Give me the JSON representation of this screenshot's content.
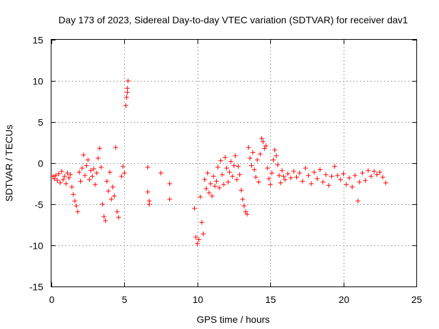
{
  "chart_data": {
    "type": "scatter",
    "title": "Day 173 of 2023, Sidereal Day-to-day VTEC variation (SDTVAR) for receiver dav1",
    "xlabel": "GPS time / hours",
    "ylabel": "SDTVAR / TECUs",
    "xlim": [
      0,
      25
    ],
    "ylim": [
      -15,
      15
    ],
    "xticks": [
      "0",
      "5",
      "10",
      "15",
      "20",
      "25"
    ],
    "yticks": [
      "-15",
      "-10",
      "-5",
      "0",
      "5",
      "10",
      "15"
    ],
    "grid": true,
    "marker": "+",
    "color": "#ff0000",
    "series": [
      {
        "name": "dav1",
        "points": [
          [
            0.1,
            -1.6
          ],
          [
            0.2,
            -1.9
          ],
          [
            0.3,
            -1.5
          ],
          [
            0.4,
            -2.1
          ],
          [
            0.5,
            -1.3
          ],
          [
            0.6,
            -2.4
          ],
          [
            0.7,
            -1.0
          ],
          [
            0.8,
            -2.0
          ],
          [
            0.9,
            -1.6
          ],
          [
            1.0,
            -2.5
          ],
          [
            1.1,
            -1.2
          ],
          [
            1.2,
            -1.8
          ],
          [
            1.3,
            -1.4
          ],
          [
            1.4,
            -2.9
          ],
          [
            1.5,
            -3.8
          ],
          [
            1.6,
            -4.6
          ],
          [
            1.7,
            -5.2
          ],
          [
            1.8,
            -5.9
          ],
          [
            1.9,
            -1.1
          ],
          [
            2.0,
            -2.2
          ],
          [
            2.1,
            -0.6
          ],
          [
            2.2,
            1.0
          ],
          [
            2.3,
            -1.5
          ],
          [
            2.4,
            -0.3
          ],
          [
            2.5,
            0.4
          ],
          [
            2.6,
            -2.0
          ],
          [
            2.7,
            -0.9
          ],
          [
            2.8,
            -1.6
          ],
          [
            2.9,
            -0.7
          ],
          [
            3.0,
            -2.6
          ],
          [
            3.1,
            -1.2
          ],
          [
            3.2,
            0.6
          ],
          [
            3.3,
            1.8
          ],
          [
            3.4,
            -0.5
          ],
          [
            3.5,
            -5.0
          ],
          [
            3.6,
            -6.5
          ],
          [
            3.7,
            -7.0
          ],
          [
            3.8,
            -2.2
          ],
          [
            3.9,
            -3.4
          ],
          [
            4.0,
            -1.1
          ],
          [
            4.1,
            -4.4
          ],
          [
            4.2,
            -2.9
          ],
          [
            4.3,
            -4.0
          ],
          [
            4.4,
            1.9
          ],
          [
            4.5,
            -5.9
          ],
          [
            4.6,
            -6.6
          ],
          [
            4.8,
            -1.6
          ],
          [
            4.9,
            -0.4
          ],
          [
            5.0,
            -1.2
          ],
          [
            5.1,
            7.0
          ],
          [
            5.15,
            8.0
          ],
          [
            5.2,
            9.1
          ],
          [
            5.25,
            10.0
          ],
          [
            5.2,
            8.6
          ],
          [
            6.6,
            -0.5
          ],
          [
            6.6,
            -3.5
          ],
          [
            6.7,
            -4.6
          ],
          [
            6.7,
            -5.0
          ],
          [
            7.5,
            -1.2
          ],
          [
            8.1,
            -2.5
          ],
          [
            8.1,
            -4.4
          ],
          [
            9.8,
            -5.5
          ],
          [
            9.9,
            -9.0
          ],
          [
            10.0,
            -9.8
          ],
          [
            10.1,
            -9.3
          ],
          [
            10.2,
            -4.1
          ],
          [
            10.3,
            -7.2
          ],
          [
            10.4,
            -8.6
          ],
          [
            10.5,
            -2.0
          ],
          [
            10.6,
            -3.1
          ],
          [
            10.7,
            -1.2
          ],
          [
            10.8,
            -3.6
          ],
          [
            10.9,
            -2.5
          ],
          [
            11.0,
            -4.0
          ],
          [
            11.1,
            -1.6
          ],
          [
            11.2,
            -2.8
          ],
          [
            11.3,
            -2.2
          ],
          [
            11.4,
            -0.5
          ],
          [
            11.5,
            -3.0
          ],
          [
            11.6,
            0.3
          ],
          [
            11.7,
            -1.4
          ],
          [
            11.8,
            -2.6
          ],
          [
            11.9,
            0.7
          ],
          [
            12.0,
            -0.6
          ],
          [
            12.1,
            -2.3
          ],
          [
            12.2,
            -1.1
          ],
          [
            12.3,
            0.2
          ],
          [
            12.4,
            -1.6
          ],
          [
            12.5,
            -0.3
          ],
          [
            12.6,
            0.9
          ],
          [
            12.7,
            -2.0
          ],
          [
            12.8,
            -0.4
          ],
          [
            12.9,
            -1.4
          ],
          [
            13.0,
            -3.3
          ],
          [
            13.1,
            -4.4
          ],
          [
            13.2,
            -5.2
          ],
          [
            13.3,
            -5.9
          ],
          [
            13.4,
            -6.2
          ],
          [
            13.5,
            1.9
          ],
          [
            13.6,
            0.6
          ],
          [
            13.7,
            -0.3
          ],
          [
            13.8,
            1.3
          ],
          [
            13.9,
            -0.8
          ],
          [
            14.0,
            -1.7
          ],
          [
            14.1,
            0.4
          ],
          [
            14.2,
            -2.3
          ],
          [
            14.3,
            1.1
          ],
          [
            14.4,
            3.0
          ],
          [
            14.5,
            2.6
          ],
          [
            14.6,
            1.8
          ],
          [
            14.7,
            2.1
          ],
          [
            14.8,
            -0.6
          ],
          [
            14.9,
            -1.9
          ],
          [
            15.0,
            -2.6
          ],
          [
            15.1,
            -1.2
          ],
          [
            15.2,
            0.4
          ],
          [
            15.3,
            1.6
          ],
          [
            15.4,
            0.9
          ],
          [
            15.5,
            -0.2
          ],
          [
            15.6,
            -1.5
          ],
          [
            15.7,
            -2.4
          ],
          [
            15.8,
            -0.9
          ],
          [
            15.9,
            -1.6
          ],
          [
            16.0,
            -2.0
          ],
          [
            16.2,
            -1.3
          ],
          [
            16.4,
            -1.8
          ],
          [
            16.6,
            -1.0
          ],
          [
            16.8,
            -1.7
          ],
          [
            17.0,
            -1.2
          ],
          [
            17.2,
            -2.2
          ],
          [
            17.4,
            -0.6
          ],
          [
            17.6,
            -1.5
          ],
          [
            17.8,
            -2.5
          ],
          [
            18.0,
            -1.1
          ],
          [
            18.2,
            -1.9
          ],
          [
            18.4,
            -0.8
          ],
          [
            18.6,
            -2.3
          ],
          [
            18.8,
            -1.4
          ],
          [
            19.0,
            -2.7
          ],
          [
            19.2,
            -1.6
          ],
          [
            19.4,
            -0.4
          ],
          [
            19.6,
            -1.5
          ],
          [
            19.8,
            -2.0
          ],
          [
            20.0,
            -1.3
          ],
          [
            20.2,
            -2.6
          ],
          [
            20.4,
            -1.8
          ],
          [
            20.6,
            -2.9
          ],
          [
            20.8,
            -1.5
          ],
          [
            21.0,
            -4.6
          ],
          [
            21.1,
            -2.3
          ],
          [
            21.3,
            -1.2
          ],
          [
            21.5,
            -2.1
          ],
          [
            21.7,
            -0.9
          ],
          [
            21.9,
            -1.6
          ],
          [
            22.1,
            -1.0
          ],
          [
            22.3,
            -1.4
          ],
          [
            22.5,
            -1.1
          ],
          [
            22.7,
            -1.7
          ],
          [
            22.9,
            -2.4
          ]
        ]
      }
    ]
  }
}
